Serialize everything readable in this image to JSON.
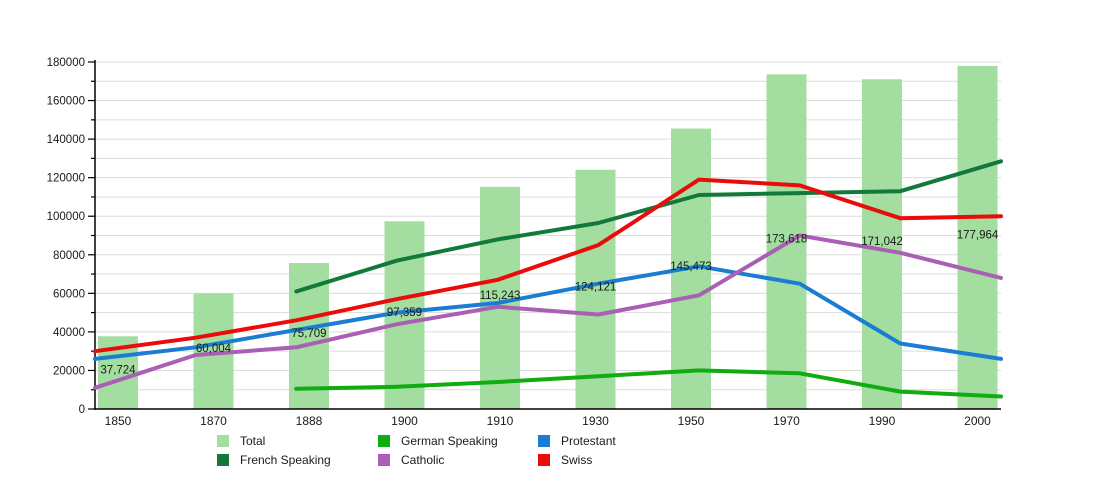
{
  "page": {
    "background": "#ffffff"
  },
  "chart_data": {
    "type": "combo-bar-line",
    "title": "",
    "xlabel": "",
    "ylabel": "",
    "grid": "horizontal-only",
    "categories": [
      "1850",
      "1870",
      "1888",
      "1900",
      "1910",
      "1930",
      "1950",
      "1970",
      "1990",
      "2000"
    ],
    "bar_series": {
      "name": "Total",
      "color": "#a3dd9f",
      "values": [
        37724,
        60004,
        75709,
        97359,
        115243,
        124121,
        145473,
        173618,
        171042,
        177964
      ],
      "labels": [
        "37,724",
        "60,004",
        "75,709",
        "97,359",
        "115,243",
        "124,121",
        "145,473",
        "173,618",
        "171,042",
        "177,964"
      ]
    },
    "line_series": [
      {
        "name": "German Speaking",
        "color": "#10ac10",
        "values": [
          null,
          null,
          10500,
          11500,
          14000,
          17000,
          20000,
          18500,
          9000,
          6500
        ]
      },
      {
        "name": "French Speaking",
        "color": "#13783c",
        "values": [
          null,
          null,
          61000,
          77000,
          88000,
          96500,
          111000,
          112000,
          113000,
          128500
        ]
      },
      {
        "name": "Protestant",
        "color": "#1b7dd2",
        "values": [
          26000,
          32000,
          41000,
          50000,
          55000,
          65000,
          74000,
          65000,
          34000,
          26000
        ]
      },
      {
        "name": "Catholic",
        "color": "#a95fb4",
        "values": [
          11000,
          28000,
          32000,
          44000,
          53000,
          49000,
          59000,
          90000,
          81000,
          68000
        ]
      },
      {
        "name": "Swiss",
        "color": "#ea0b0b",
        "values": [
          30000,
          37000,
          46000,
          57000,
          67000,
          85000,
          119000,
          116000,
          99000,
          100000
        ]
      }
    ],
    "y_axis": {
      "min": 0,
      "max": 180000,
      "major_step": 20000,
      "minor_step": 10000,
      "tick_labels": [
        "0",
        "20000",
        "40000",
        "60000",
        "80000",
        "100000",
        "120000",
        "140000",
        "160000",
        "180000"
      ]
    },
    "x_axis": {
      "tick_labels": [
        "1850",
        "1870",
        "1888",
        "1900",
        "1910",
        "1930",
        "1950",
        "1970",
        "1990",
        "2000"
      ]
    },
    "legend": {
      "position": "bottom",
      "entries": [
        {
          "label": "Total",
          "color": "#a3dd9f"
        },
        {
          "label": "German Speaking",
          "color": "#10ac10"
        },
        {
          "label": "Protestant",
          "color": "#1b7dd2"
        },
        {
          "label": "French Speaking",
          "color": "#13783c"
        },
        {
          "label": "Catholic",
          "color": "#a95fb4"
        },
        {
          "label": "Swiss",
          "color": "#ea0b0b"
        }
      ]
    },
    "colors": {
      "grid_line": "#dcdcdc",
      "axis_line": "#000000",
      "label_text": "#1a1a1a"
    }
  }
}
